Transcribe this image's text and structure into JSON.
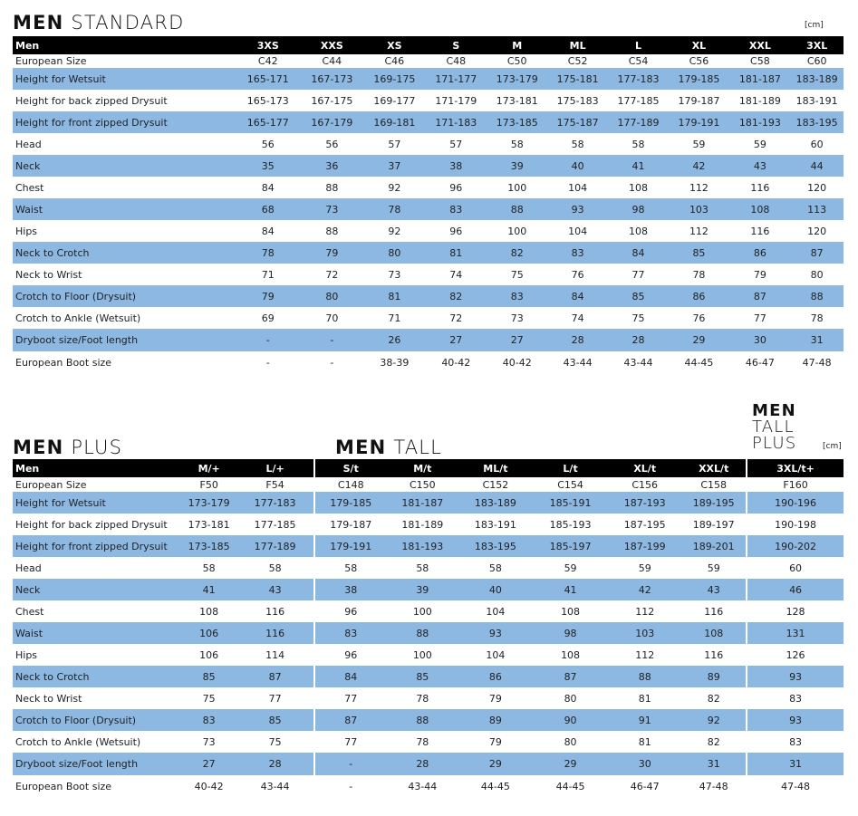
{
  "std": {
    "title_bold": "MEN",
    "title_light": "STANDARD",
    "unit": "[cm]",
    "header": [
      "Men",
      "3XS",
      "XXS",
      "XS",
      "S",
      "M",
      "ML",
      "L",
      "XL",
      "XXL",
      "3XL"
    ],
    "rows": [
      [
        "European Size",
        "C42",
        "C44",
        "C46",
        "C48",
        "C50",
        "C52",
        "C54",
        "C56",
        "C58",
        "C60"
      ],
      [
        "Height for Wetsuit",
        "165-171",
        "167-173",
        "169-175",
        "171-177",
        "173-179",
        "175-181",
        "177-183",
        "179-185",
        "181-187",
        "183-189"
      ],
      [
        "Height for back zipped Drysuit",
        "165-173",
        "167-175",
        "169-177",
        "171-179",
        "173-181",
        "175-183",
        "177-185",
        "179-187",
        "181-189",
        "183-191"
      ],
      [
        "Height for front zipped Drysuit",
        "165-177",
        "167-179",
        "169-181",
        "171-183",
        "173-185",
        "175-187",
        "177-189",
        "179-191",
        "181-193",
        "183-195"
      ],
      [
        "Head",
        "56",
        "56",
        "57",
        "57",
        "58",
        "58",
        "58",
        "59",
        "59",
        "60"
      ],
      [
        "Neck",
        "35",
        "36",
        "37",
        "38",
        "39",
        "40",
        "41",
        "42",
        "43",
        "44"
      ],
      [
        "Chest",
        "84",
        "88",
        "92",
        "96",
        "100",
        "104",
        "108",
        "112",
        "116",
        "120"
      ],
      [
        "Waist",
        "68",
        "73",
        "78",
        "83",
        "88",
        "93",
        "98",
        "103",
        "108",
        "113"
      ],
      [
        "Hips",
        "84",
        "88",
        "92",
        "96",
        "100",
        "104",
        "108",
        "112",
        "116",
        "120"
      ],
      [
        "Neck to Crotch",
        "78",
        "79",
        "80",
        "81",
        "82",
        "83",
        "84",
        "85",
        "86",
        "87"
      ],
      [
        "Neck to Wrist",
        "71",
        "72",
        "73",
        "74",
        "75",
        "76",
        "77",
        "78",
        "79",
        "80"
      ],
      [
        "Crotch to Floor (Drysuit)",
        "79",
        "80",
        "81",
        "82",
        "83",
        "84",
        "85",
        "86",
        "87",
        "88"
      ],
      [
        "Crotch to Ankle (Wetsuit)",
        "69",
        "70",
        "71",
        "72",
        "73",
        "74",
        "75",
        "76",
        "77",
        "78"
      ],
      [
        "Dryboot size/Foot length",
        "-",
        "-",
        "26",
        "27",
        "27",
        "28",
        "28",
        "29",
        "30",
        "31"
      ],
      [
        "European Boot size",
        "-",
        "-",
        "38-39",
        "40-42",
        "40-42",
        "43-44",
        "43-44",
        "44-45",
        "46-47",
        "47-48"
      ]
    ]
  },
  "plus": {
    "title_bold": "MEN",
    "title_light": "PLUS",
    "header": [
      "Men",
      "M/+",
      "L/+"
    ],
    "rows": [
      [
        "European Size",
        "F50",
        "F54"
      ],
      [
        "Height for Wetsuit",
        "173-179",
        "177-183"
      ],
      [
        "Height for back zipped Drysuit",
        "173-181",
        "177-185"
      ],
      [
        "Height for front zipped Drysuit",
        "173-185",
        "177-189"
      ],
      [
        "Head",
        "58",
        "58"
      ],
      [
        "Neck",
        "41",
        "43"
      ],
      [
        "Chest",
        "108",
        "116"
      ],
      [
        "Waist",
        "106",
        "116"
      ],
      [
        "Hips",
        "106",
        "114"
      ],
      [
        "Neck to Crotch",
        "85",
        "87"
      ],
      [
        "Neck to Wrist",
        "75",
        "77"
      ],
      [
        "Crotch to Floor (Drysuit)",
        "83",
        "85"
      ],
      [
        "Crotch to Ankle (Wetsuit)",
        "73",
        "75"
      ],
      [
        "Dryboot size/Foot length",
        "27",
        "28"
      ],
      [
        "European Boot size",
        "40-42",
        "43-44"
      ]
    ]
  },
  "tall": {
    "title_bold": "MEN",
    "title_light": "TALL",
    "header": [
      "S/t",
      "M/t",
      "ML/t",
      "L/t",
      "XL/t",
      "XXL/t"
    ],
    "rows": [
      [
        "C148",
        "C150",
        "C152",
        "C154",
        "C156",
        "C158"
      ],
      [
        "179-185",
        "181-187",
        "183-189",
        "185-191",
        "187-193",
        "189-195"
      ],
      [
        "179-187",
        "181-189",
        "183-191",
        "185-193",
        "187-195",
        "189-197"
      ],
      [
        "179-191",
        "181-193",
        "183-195",
        "185-197",
        "187-199",
        "189-201"
      ],
      [
        "58",
        "58",
        "58",
        "59",
        "59",
        "59"
      ],
      [
        "38",
        "39",
        "40",
        "41",
        "42",
        "43"
      ],
      [
        "96",
        "100",
        "104",
        "108",
        "112",
        "116"
      ],
      [
        "83",
        "88",
        "93",
        "98",
        "103",
        "108"
      ],
      [
        "96",
        "100",
        "104",
        "108",
        "112",
        "116"
      ],
      [
        "84",
        "85",
        "86",
        "87",
        "88",
        "89"
      ],
      [
        "77",
        "78",
        "79",
        "80",
        "81",
        "82"
      ],
      [
        "87",
        "88",
        "89",
        "90",
        "91",
        "92"
      ],
      [
        "77",
        "78",
        "79",
        "80",
        "81",
        "82"
      ],
      [
        "-",
        "28",
        "29",
        "29",
        "30",
        "31"
      ],
      [
        "-",
        "43-44",
        "44-45",
        "44-45",
        "46-47",
        "47-48"
      ]
    ]
  },
  "tallplus": {
    "title_bold": "MEN",
    "title_light1": "TALL",
    "title_light2": "PLUS",
    "unit": "[cm]",
    "header": [
      "3XL/t+"
    ],
    "rows": [
      [
        "F160"
      ],
      [
        "190-196"
      ],
      [
        "190-198"
      ],
      [
        "190-202"
      ],
      [
        "60"
      ],
      [
        "46"
      ],
      [
        "128"
      ],
      [
        "131"
      ],
      [
        "126"
      ],
      [
        "93"
      ],
      [
        "83"
      ],
      [
        "93"
      ],
      [
        "83"
      ],
      [
        "31"
      ],
      [
        "47-48"
      ]
    ]
  }
}
